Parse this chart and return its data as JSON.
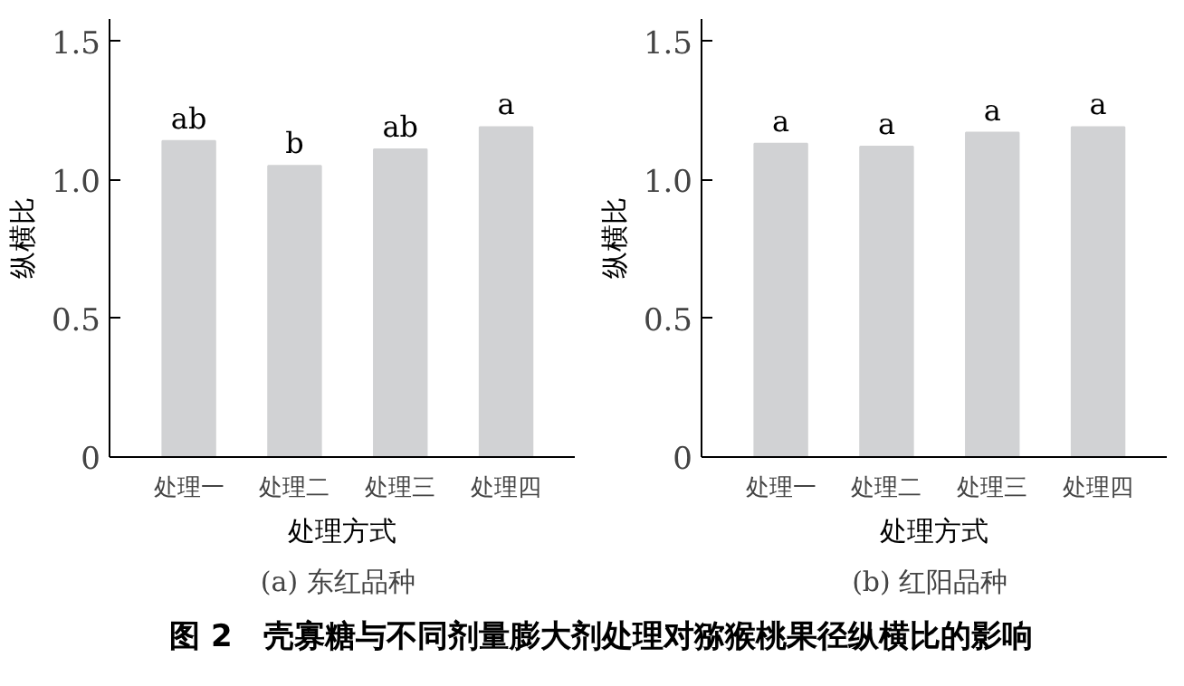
{
  "chart_data": [
    {
      "type": "bar",
      "subtitle": "(a)  东红品种",
      "xlabel": "处理方式",
      "ylabel": "纵横比",
      "categories": [
        "处理一",
        "处理二",
        "处理三",
        "处理四"
      ],
      "values": [
        1.14,
        1.05,
        1.11,
        1.19
      ],
      "color": "#d1d2d4",
      "ylim": [
        0,
        1.58
      ],
      "yticks": [
        0,
        0.5,
        {
          "value": 1.0,
          "label": "1.0"
        },
        1.5
      ],
      "grid": false,
      "annotations": [
        {
          "text": "ab",
          "x": "处理一",
          "y": 1.14
        },
        {
          "text": "b",
          "x": "处理二",
          "y": 1.05
        },
        {
          "text": "ab",
          "x": "处理三",
          "y": 1.11
        },
        {
          "text": "a",
          "x": "处理四",
          "y": 1.19
        },
        "图 2　壳寡糖与不同剂量膨大剂处理对猕猴桃果径纵横比的影响"
      ]
    },
    {
      "type": "bar",
      "subtitle": "(b)  红阳品种",
      "xlabel": "处理方式",
      "ylabel": "纵横比",
      "categories": [
        "处理一",
        "处理二",
        "处理三",
        "处理四"
      ],
      "values": [
        1.13,
        1.12,
        1.17,
        1.19
      ],
      "color": "#d1d2d4",
      "ylim": [
        0,
        1.58
      ],
      "yticks": [
        0,
        0.5,
        {
          "value": 1.0,
          "label": "1.0"
        },
        1.5
      ],
      "grid": false,
      "annotations": [
        {
          "text": "a",
          "x": "处理一",
          "y": 1.13
        },
        {
          "text": "a",
          "x": "处理二",
          "y": 1.12
        },
        {
          "text": "a",
          "x": "处理三",
          "y": 1.17
        },
        {
          "text": "a",
          "x": "处理四",
          "y": 1.19
        }
      ]
    }
  ]
}
